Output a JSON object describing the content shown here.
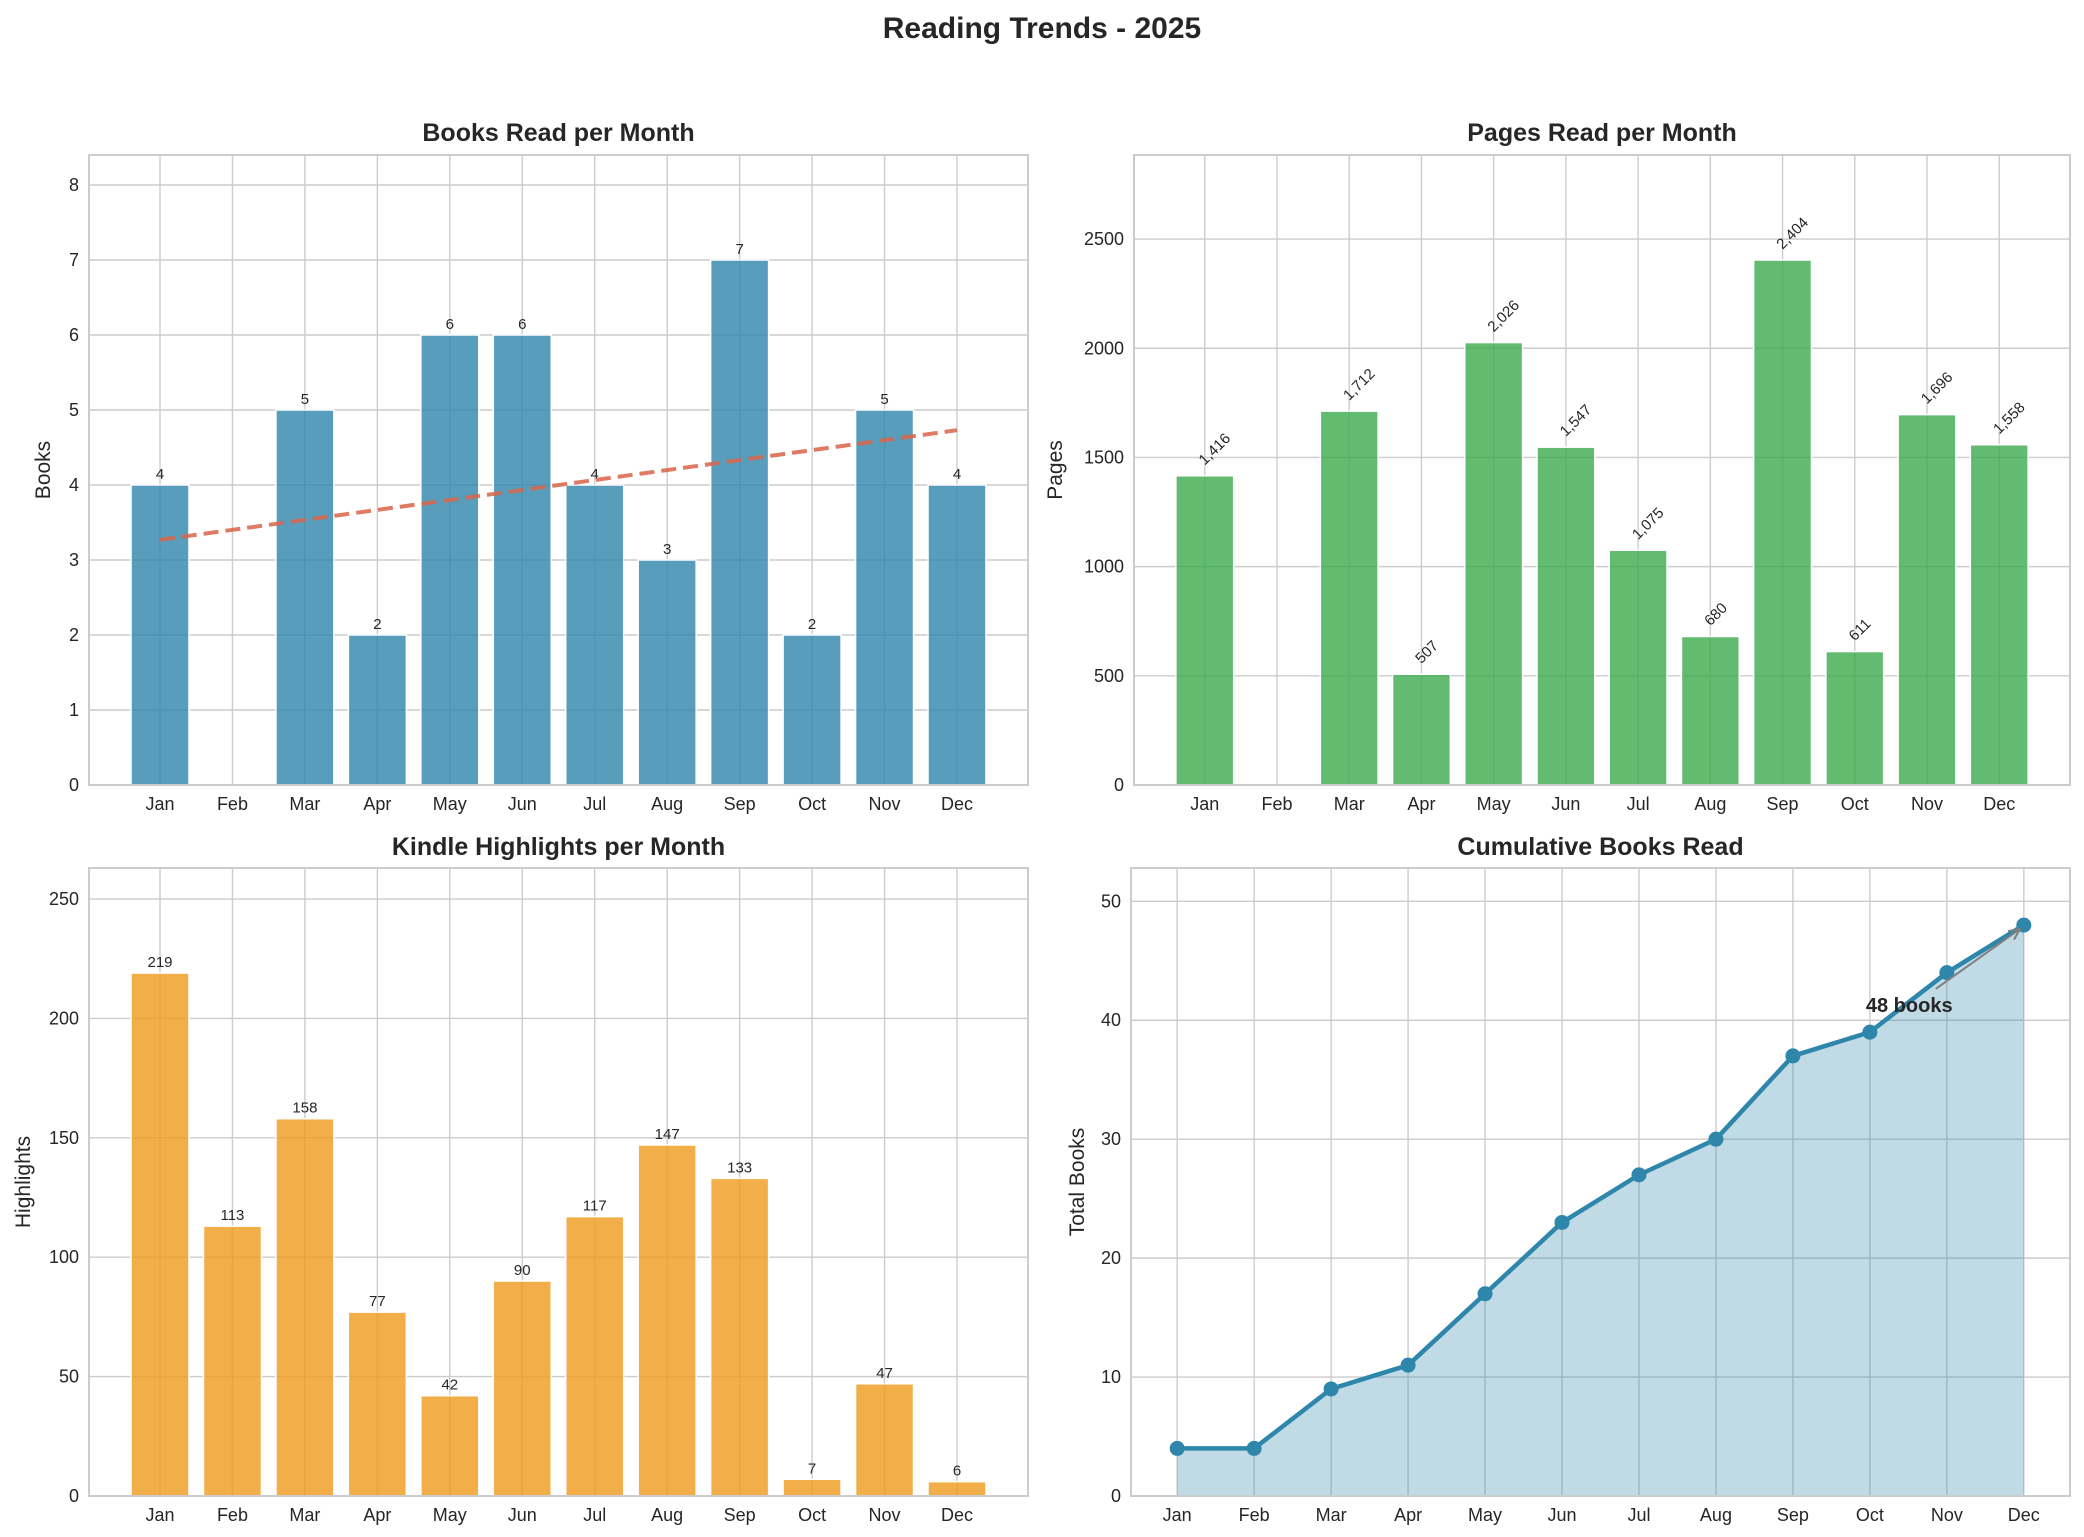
{
  "suptitle": "Reading Trends - 2025",
  "chart_data": [
    {
      "id": "books",
      "type": "bar",
      "title": "Books Read per Month",
      "xlabel": "",
      "ylabel": "Books",
      "categories": [
        "Jan",
        "Feb",
        "Mar",
        "Apr",
        "May",
        "Jun",
        "Jul",
        "Aug",
        "Sep",
        "Oct",
        "Nov",
        "Dec"
      ],
      "values": [
        4,
        0,
        5,
        2,
        6,
        6,
        4,
        3,
        7,
        2,
        5,
        4
      ],
      "data_labels": [
        "4",
        "",
        "5",
        "2",
        "6",
        "6",
        "4",
        "3",
        "7",
        "2",
        "5",
        "4"
      ],
      "ylim": [
        0,
        8.4
      ],
      "yticks": [
        0,
        1,
        2,
        3,
        4,
        5,
        6,
        7,
        8
      ],
      "grid": true,
      "color": "#2E86AB",
      "trend_line": {
        "type": "linear fit",
        "style": "dashed",
        "color": "#D9644A"
      }
    },
    {
      "id": "pages",
      "type": "bar",
      "title": "Pages Read per Month",
      "xlabel": "",
      "ylabel": "Pages",
      "categories": [
        "Jan",
        "Feb",
        "Mar",
        "Apr",
        "May",
        "Jun",
        "Jul",
        "Aug",
        "Sep",
        "Oct",
        "Nov",
        "Dec"
      ],
      "values": [
        1416,
        0,
        1712,
        507,
        2026,
        1547,
        1075,
        680,
        2404,
        611,
        1696,
        1558
      ],
      "data_labels": [
        "1,416",
        "",
        "1,712",
        "507",
        "2,026",
        "1,547",
        "1,075",
        "680",
        "2,404",
        "611",
        "1,696",
        "1,558"
      ],
      "ylim": [
        0,
        2885
      ],
      "yticks": [
        0,
        500,
        1000,
        1500,
        2000,
        2500
      ],
      "grid": true,
      "color": "#3BAA4E"
    },
    {
      "id": "highlights",
      "type": "bar",
      "title": "Kindle Highlights per Month",
      "xlabel": "",
      "ylabel": "Highlights",
      "categories": [
        "Jan",
        "Feb",
        "Mar",
        "Apr",
        "May",
        "Jun",
        "Jul",
        "Aug",
        "Sep",
        "Oct",
        "Nov",
        "Dec"
      ],
      "values": [
        219,
        113,
        158,
        77,
        42,
        90,
        117,
        147,
        133,
        7,
        47,
        6
      ],
      "data_labels": [
        "219",
        "113",
        "158",
        "77",
        "42",
        "90",
        "117",
        "147",
        "133",
        "7",
        "47",
        "6"
      ],
      "ylim": [
        0,
        263
      ],
      "yticks": [
        0,
        50,
        100,
        150,
        200,
        250
      ],
      "grid": true,
      "color": "#EE9A1B"
    },
    {
      "id": "cumulative",
      "type": "area",
      "title": "Cumulative Books Read",
      "xlabel": "",
      "ylabel": "Total Books",
      "categories": [
        "Jan",
        "Feb",
        "Mar",
        "Apr",
        "May",
        "Jun",
        "Jul",
        "Aug",
        "Sep",
        "Oct",
        "Nov",
        "Dec"
      ],
      "values": [
        4,
        4,
        9,
        11,
        17,
        23,
        27,
        30,
        37,
        39,
        44,
        48
      ],
      "ylim": [
        0,
        52.8
      ],
      "yticks": [
        0,
        10,
        20,
        30,
        40,
        50
      ],
      "grid": true,
      "color": "#2E86AB",
      "annotation": {
        "text": "48 books",
        "target": "Dec",
        "text_at": [
          "Oct",
          41.3
        ],
        "arrow_color": "#808080"
      }
    }
  ]
}
